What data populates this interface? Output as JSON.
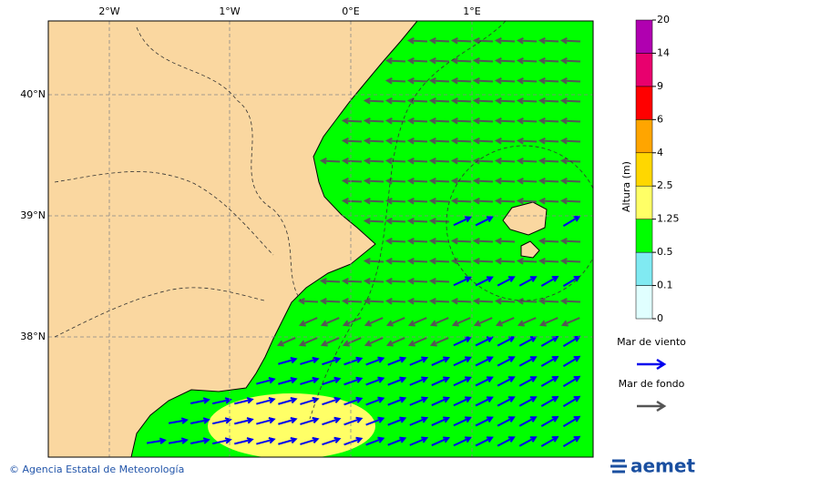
{
  "map": {
    "lon_ticks": [
      "2°W",
      "1°W",
      "0°E",
      "1°E"
    ],
    "lat_ticks": [
      "40°N",
      "39°N",
      "38°N"
    ]
  },
  "colorbar": {
    "title": "Altura (m)",
    "levels": [
      0,
      0.1,
      0.5,
      1.25,
      2.5,
      4,
      6,
      9,
      14,
      20
    ],
    "colors": [
      "#e0ffff",
      "#80eaf2",
      "#00ff00",
      "#ffff66",
      "#ffd700",
      "#ffa500",
      "#ff0000",
      "#e8006e",
      "#b000b0"
    ]
  },
  "legend": [
    {
      "label": "Mar de viento",
      "color": "#0000ee"
    },
    {
      "label": "Mar de fondo",
      "color": "#555555"
    }
  ],
  "footer": {
    "credit": "© Agencia Estatal de Meteorología",
    "logo": "aemet"
  }
}
